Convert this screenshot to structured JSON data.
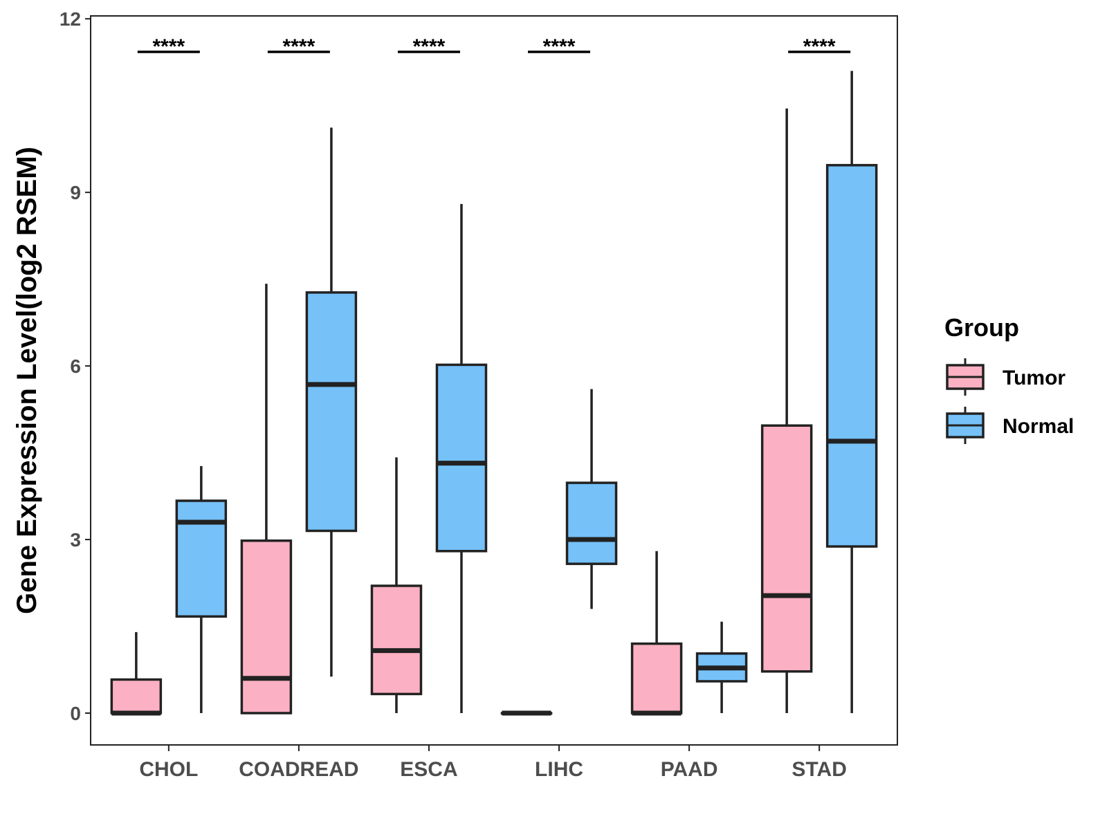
{
  "chart_data": {
    "type": "boxplot",
    "title": "",
    "xlabel": "",
    "ylabel": "Gene Expression Level(log2 RSEM)",
    "ylim": [
      -0.55,
      12.05
    ],
    "yticks": [
      0,
      3,
      6,
      9,
      12
    ],
    "categories": [
      "CHOL",
      "COADREAD",
      "ESCA",
      "LIHC",
      "PAAD",
      "STAD"
    ],
    "legend": {
      "title": "Group",
      "position": "right",
      "entries": [
        {
          "name": "Tumor",
          "color": "#FBB1C3"
        },
        {
          "name": "Normal",
          "color": "#76C1F8"
        }
      ]
    },
    "series": [
      {
        "name": "Tumor",
        "color": "#FBB1C3",
        "boxes": [
          {
            "category": "CHOL",
            "min": 0,
            "q1": 0,
            "median": 0,
            "q3": 0.58,
            "max": 1.4
          },
          {
            "category": "COADREAD",
            "min": 0,
            "q1": 0,
            "median": 0.6,
            "q3": 2.98,
            "max": 7.42
          },
          {
            "category": "ESCA",
            "min": 0,
            "q1": 0.33,
            "median": 1.08,
            "q3": 2.2,
            "max": 4.42
          },
          {
            "category": "LIHC",
            "min": 0,
            "q1": 0,
            "median": 0,
            "q3": 0,
            "max": 0
          },
          {
            "category": "PAAD",
            "min": 0,
            "q1": 0,
            "median": 0,
            "q3": 1.2,
            "max": 2.8
          },
          {
            "category": "STAD",
            "min": 0,
            "q1": 0.72,
            "median": 2.03,
            "q3": 4.97,
            "max": 10.45
          }
        ]
      },
      {
        "name": "Normal",
        "color": "#76C1F8",
        "boxes": [
          {
            "category": "CHOL",
            "min": 0,
            "q1": 1.67,
            "median": 3.3,
            "q3": 3.67,
            "max": 4.27
          },
          {
            "category": "COADREAD",
            "min": 0.63,
            "q1": 3.15,
            "median": 5.68,
            "q3": 7.27,
            "max": 10.12
          },
          {
            "category": "ESCA",
            "min": 0,
            "q1": 2.8,
            "median": 4.32,
            "q3": 6.02,
            "max": 8.8
          },
          {
            "category": "LIHC",
            "min": 1.8,
            "q1": 2.58,
            "median": 3.0,
            "q3": 3.98,
            "max": 5.6
          },
          {
            "category": "PAAD",
            "min": 0,
            "q1": 0.55,
            "median": 0.78,
            "q3": 1.03,
            "max": 1.58
          },
          {
            "category": "STAD",
            "min": 0,
            "q1": 2.88,
            "median": 4.7,
            "q3": 9.47,
            "max": 11.1
          }
        ]
      }
    ],
    "significance": [
      {
        "category": "CHOL",
        "label": "****"
      },
      {
        "category": "COADREAD",
        "label": "****"
      },
      {
        "category": "ESCA",
        "label": "****"
      },
      {
        "category": "LIHC",
        "label": "****"
      },
      {
        "category": "STAD",
        "label": "****"
      }
    ]
  }
}
